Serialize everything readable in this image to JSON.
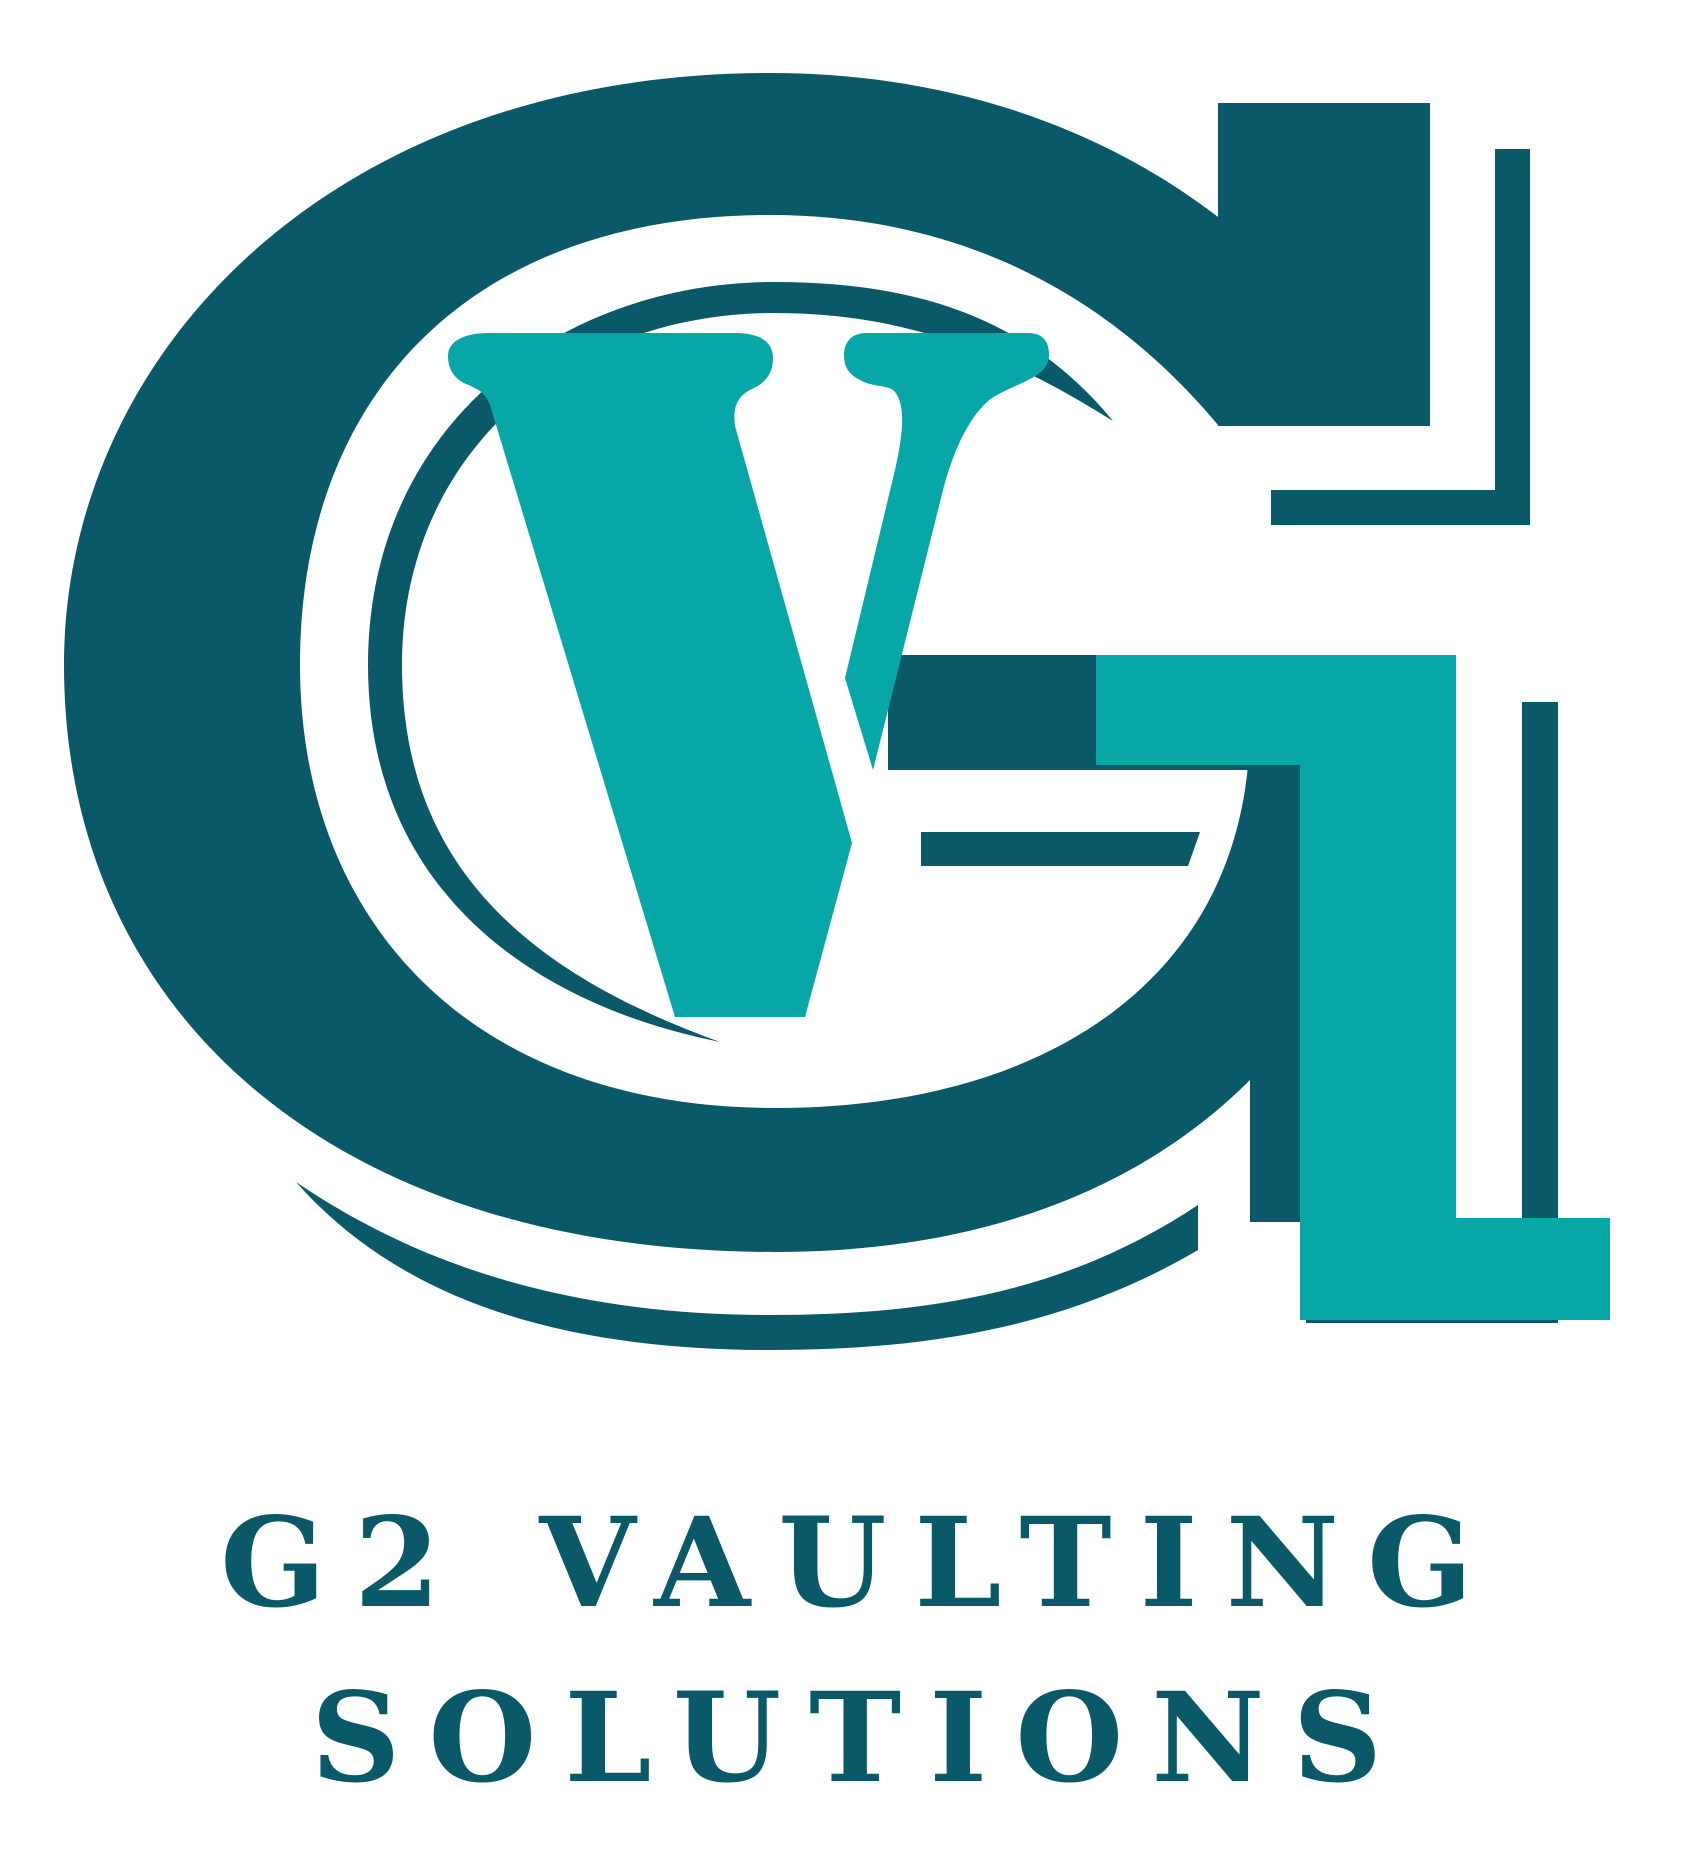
{
  "brand": {
    "name_line_1": "G2 VAULTING",
    "name_line_2": "SOLUTIONS"
  },
  "logo": {
    "icon": "g2-vaulting-monogram-icon",
    "colors": {
      "dark_teal": "#0a5968",
      "bright_teal": "#06a7a6",
      "background": "#ffffff"
    }
  }
}
